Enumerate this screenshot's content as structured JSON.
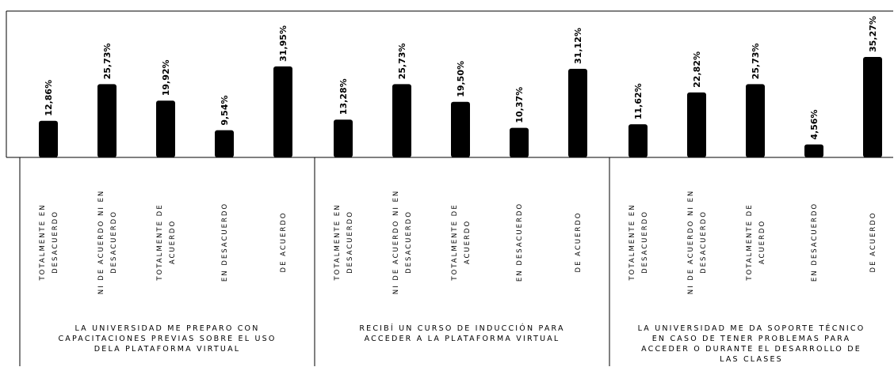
{
  "chart_data": {
    "type": "bar",
    "ylim": [
      0,
      40
    ],
    "colors": {
      "bar": "#000000",
      "frame": "#000000",
      "background": "#ffffff"
    },
    "groups": [
      {
        "label_lines": [
          "LA UNIVERSIDAD ME PREPARO CON",
          "CAPACITACIONES PREVIAS SOBRE EL USO",
          "DELA PLATAFORMA VIRTUAL"
        ],
        "bars": [
          {
            "category_lines": [
              "TOTALMENTE EN",
              "DESACUERDO"
            ],
            "value": 12.86,
            "label": "12,86%"
          },
          {
            "category_lines": [
              "NI DE ACUERDO NI EN",
              "DESACUERDO"
            ],
            "value": 25.73,
            "label": "25,73%"
          },
          {
            "category_lines": [
              "TOTALMENTE DE",
              "ACUERDO"
            ],
            "value": 19.92,
            "label": "19,92%"
          },
          {
            "category_lines": [
              "EN DESACUERDO"
            ],
            "value": 9.54,
            "label": "9,54%"
          },
          {
            "category_lines": [
              "DE ACUERDO"
            ],
            "value": 31.95,
            "label": "31,95%"
          }
        ]
      },
      {
        "label_lines": [
          "RECIBÍ UN CURSO DE INDUCCIÓN PARA",
          "ACCEDER A LA PLATAFORMA VIRTUAL"
        ],
        "bars": [
          {
            "category_lines": [
              "TOTALMENTE EN",
              "DESACUERDO"
            ],
            "value": 13.28,
            "label": "13,28%"
          },
          {
            "category_lines": [
              "NI DE ACUERDO NI EN",
              "DESACUERDO"
            ],
            "value": 25.73,
            "label": "25,73%"
          },
          {
            "category_lines": [
              "TOTALMENTE DE",
              "ACUERDO"
            ],
            "value": 19.5,
            "label": "19,50%"
          },
          {
            "category_lines": [
              "EN DESACUERDO"
            ],
            "value": 10.37,
            "label": "10,37%"
          },
          {
            "category_lines": [
              "DE ACUERDO"
            ],
            "value": 31.12,
            "label": "31,12%"
          }
        ]
      },
      {
        "label_lines": [
          "LA UNIVERSIDAD ME DA SOPORTE TÉCNICO",
          "EN CASO DE TENER PROBLEMAS PARA",
          "ACCEDER O DURANTE EL DESARROLLO DE",
          "LAS CLASES"
        ],
        "bars": [
          {
            "category_lines": [
              "TOTALMENTE EN",
              "DESACUERDO"
            ],
            "value": 11.62,
            "label": "11,62%"
          },
          {
            "category_lines": [
              "NI DE ACUERDO NI EN",
              "DESACUERDO"
            ],
            "value": 22.82,
            "label": "22,82%"
          },
          {
            "category_lines": [
              "TOTALMENTE DE",
              "ACUERDO"
            ],
            "value": 25.73,
            "label": "25,73%"
          },
          {
            "category_lines": [
              "EN DESACUERDO"
            ],
            "value": 4.56,
            "label": "4,56%"
          },
          {
            "category_lines": [
              "DE ACUERDO"
            ],
            "value": 35.27,
            "label": "35,27%"
          }
        ]
      }
    ]
  }
}
